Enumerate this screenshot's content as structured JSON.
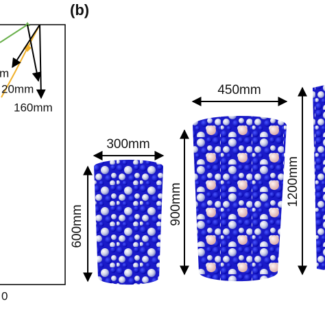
{
  "panel_label": "(b)",
  "left_plot": {
    "annotations": [
      "m",
      "20mm",
      "160mm"
    ],
    "x_tick": "0"
  },
  "samples": [
    {
      "width": "300mm",
      "height": "600mm"
    },
    {
      "width": "450mm",
      "height": "900mm"
    },
    {
      "height": "1200mm"
    }
  ]
}
